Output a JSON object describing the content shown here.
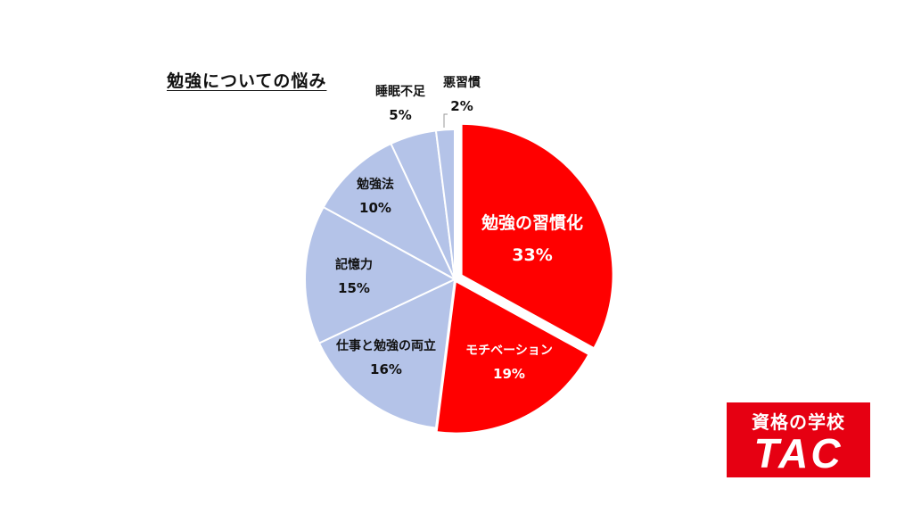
{
  "title": "勉強についての悩み",
  "chart_data": {
    "type": "pie",
    "title": "勉強についての悩み",
    "categories": [
      "勉強の習慣化",
      "モチベーション",
      "仕事と勉強の両立",
      "記憶力",
      "勉強法",
      "睡眠不足",
      "悪習慣"
    ],
    "values": [
      33,
      19,
      16,
      15,
      10,
      5,
      2
    ],
    "labels": [
      "33%",
      "19%",
      "16%",
      "15%",
      "10%",
      "5%",
      "2%"
    ],
    "colors": [
      "#ff0000",
      "#ff0000",
      "#b4c3e8",
      "#b4c3e8",
      "#b4c3e8",
      "#b4c3e8",
      "#b4c3e8"
    ],
    "exploded": [
      "勉強の習慣化"
    ],
    "start_angle_deg": 0,
    "direction": "clockwise",
    "legend": "none"
  },
  "slices": [
    {
      "name": "勉強の習慣化",
      "pct": "33%"
    },
    {
      "name": "モチベーション",
      "pct": "19%"
    },
    {
      "name": "仕事と勉強の両立",
      "pct": "16%"
    },
    {
      "name": "記憶力",
      "pct": "15%"
    },
    {
      "name": "勉強法",
      "pct": "10%"
    },
    {
      "name": "睡眠不足",
      "pct": "5%"
    },
    {
      "name": "悪習慣",
      "pct": "2%"
    }
  ],
  "logo": {
    "subtitle": "資格の学校",
    "brand": "TAC",
    "color": "#e60012"
  }
}
